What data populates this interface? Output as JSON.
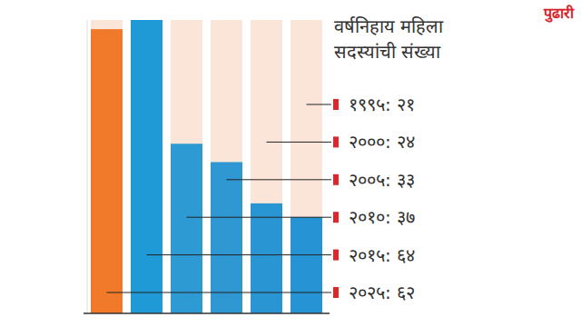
{
  "chart_data": {
    "type": "bar",
    "title": "वर्षनिहाय महिला सदस्यांची संख्या",
    "annotations": [
      "पुढारी"
    ],
    "categories": [
      "२०२५:",
      "२०१५:",
      "२०१०:",
      "२००५:",
      "२०००:",
      "१९९५:"
    ],
    "values": [
      62,
      64,
      37,
      33,
      24,
      21
    ],
    "value_labels": [
      "६२",
      "६४",
      "३७",
      "३३",
      "२४",
      "२१"
    ],
    "colors": [
      "#f07a2a",
      "#1f9ad6",
      "#2e9ad4",
      "#2f97d2",
      "#2a95d3",
      "#2593d4"
    ],
    "ylim": [
      0,
      64
    ],
    "tick_labels": false,
    "grid": false,
    "data_labels": true
  }
}
